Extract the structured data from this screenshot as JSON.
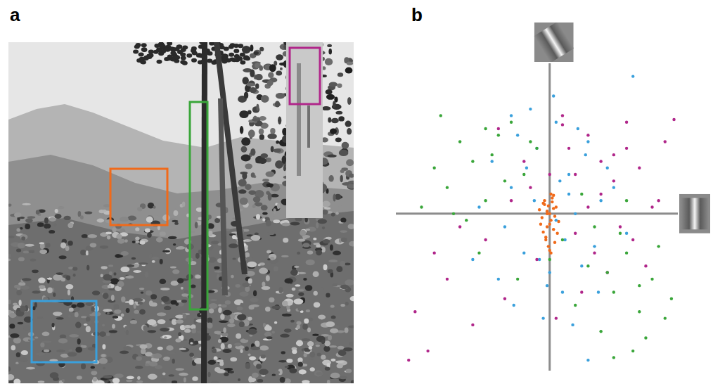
{
  "panel_labels": [
    "a",
    "b"
  ],
  "chart_data": {
    "type": "scatter",
    "xlim": [
      -1.2,
      1.0
    ],
    "ylim": [
      -1.2,
      1.15
    ],
    "tick_labels": false,
    "grid": false,
    "series": [
      {
        "color": "#3aa63a",
        "marker": "circle",
        "x": [
          -0.6,
          -0.8,
          -0.4,
          -0.7,
          -0.5,
          -0.9,
          -0.3,
          -0.65,
          -0.2,
          -0.45,
          0.3,
          0.5,
          0.6,
          0.7,
          0.4,
          0.8,
          0.9,
          0.55,
          0.2,
          0.65,
          -0.1,
          -0.55,
          -1.0,
          -0.75,
          0.1,
          0.35,
          0.75,
          0.95,
          -0.35,
          -0.25,
          0.45,
          0.85,
          -0.5,
          0.25,
          0.6,
          -0.85,
          0.0,
          -0.15,
          0.5,
          0.7
        ],
        "y": [
          0.4,
          0.2,
          0.6,
          0.55,
          0.1,
          0.35,
          0.7,
          -0.05,
          0.3,
          0.45,
          -0.4,
          -0.6,
          -0.3,
          -0.75,
          -0.9,
          -0.5,
          -0.8,
          -0.15,
          -0.7,
          -1.05,
          0.5,
          -0.3,
          0.05,
          0.0,
          -0.2,
          -0.1,
          -0.95,
          -0.65,
          0.25,
          -0.5,
          -0.45,
          -0.25,
          0.65,
          0.15,
          0.1,
          0.75,
          -0.35,
          0.55,
          -1.1,
          -0.55
        ]
      },
      {
        "color": "#b0268a",
        "marker": "circle",
        "x": [
          0.3,
          0.5,
          0.2,
          0.6,
          0.4,
          0.7,
          0.1,
          0.55,
          0.35,
          0.8,
          -0.2,
          -0.5,
          -0.8,
          -1.05,
          -0.95,
          -0.6,
          0.25,
          0.45,
          0.65,
          0.15,
          -0.3,
          -0.1,
          0.9,
          0.97,
          0.05,
          -0.4,
          0.75,
          0.3,
          -0.7,
          0.5,
          0.2,
          -0.15,
          0.6,
          0.4,
          -0.9,
          -1.1,
          0.85,
          0.1,
          -0.35,
          0.0
        ],
        "y": [
          0.6,
          0.45,
          0.3,
          0.7,
          0.15,
          0.35,
          0.75,
          -0.1,
          -0.3,
          0.05,
          0.4,
          -0.2,
          -0.5,
          -0.75,
          -1.05,
          -0.85,
          -0.6,
          -0.45,
          -0.2,
          0.5,
          0.1,
          -0.35,
          0.55,
          0.72,
          -0.8,
          0.65,
          -0.4,
          0.05,
          -0.1,
          0.25,
          -0.15,
          0.2,
          0.5,
          0.4,
          -0.3,
          -1.12,
          0.1,
          0.68,
          -0.65,
          0.3
        ]
      },
      {
        "color": "#3aa0dc",
        "marker": "circle",
        "x": [
          -0.1,
          0.15,
          -0.3,
          0.25,
          0.05,
          -0.2,
          0.4,
          -0.45,
          0.1,
          -0.05,
          0.3,
          -0.35,
          0.2,
          -0.15,
          0.0,
          0.35,
          -0.25,
          0.08,
          -0.4,
          0.45,
          0.12,
          -0.12,
          0.22,
          -0.28,
          0.6,
          -0.55,
          0.03,
          0.18,
          -0.08,
          0.28,
          -0.18,
          0.65,
          0.3,
          -0.02,
          0.5,
          -0.6,
          0.15,
          -0.3,
          0.05,
          0.38
        ],
        "y": [
          0.5,
          0.3,
          0.2,
          -0.4,
          0.7,
          -0.3,
          0.1,
          0.4,
          -0.6,
          -0.8,
          0.55,
          -0.1,
          0.0,
          0.8,
          -0.45,
          -0.25,
          0.6,
          0.25,
          -0.5,
          0.35,
          -0.2,
          0.1,
          0.65,
          -0.7,
          -0.15,
          0.05,
          0.9,
          -0.85,
          -0.35,
          0.45,
          0.35,
          1.05,
          -1.12,
          -0.55,
          0.2,
          -0.35,
          0.15,
          0.75,
          -0.05,
          -0.6
        ]
      },
      {
        "color": "#f06a1a",
        "marker": "circle",
        "x": [
          -0.02,
          0.01,
          -0.05,
          0.03,
          0.0,
          -0.03,
          0.05,
          -0.07,
          0.02,
          -0.01,
          0.04,
          -0.04,
          0.06,
          -0.06,
          0.01,
          -0.02,
          0.03,
          0.0,
          -0.08,
          0.07,
          -0.03,
          0.02,
          -0.01,
          0.04,
          -0.05,
          0.0,
          0.03,
          -0.02,
          0.01,
          -0.04
        ],
        "y": [
          0.02,
          -0.05,
          0.08,
          -0.12,
          0.0,
          -0.2,
          0.05,
          -0.08,
          0.12,
          -0.25,
          -0.02,
          0.1,
          -0.15,
          -0.03,
          0.15,
          -0.1,
          0.04,
          -0.28,
          0.03,
          -0.06,
          -0.18,
          0.09,
          0.06,
          -0.22,
          -0.14,
          -0.08,
          0.14,
          0.0,
          -0.3,
          0.07
        ]
      }
    ]
  }
}
